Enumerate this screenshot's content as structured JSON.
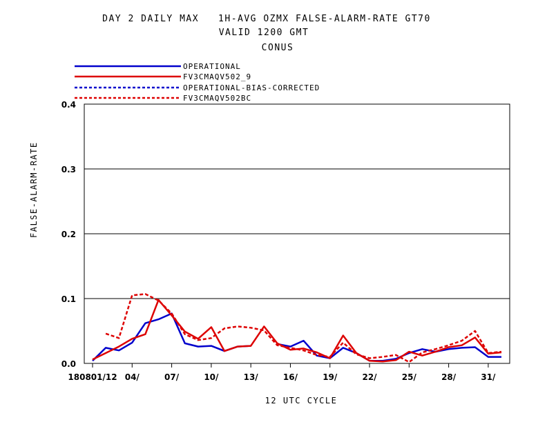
{
  "header": {
    "title_line1": "DAY 2 DAILY MAX   1H-AVG OZMX FALSE-ALARM-RATE GT70",
    "title_line2": "VALID 1200 GMT",
    "title_line3": "CONUS"
  },
  "legend": [
    {
      "label": "OPERATIONAL",
      "color": "#0000cc",
      "style": "solid"
    },
    {
      "label": "FV3CMAQV502_9",
      "color": "#dd0000",
      "style": "solid"
    },
    {
      "label": "OPERATIONAL-BIAS-CORRECTED",
      "color": "#0000cc",
      "style": "dashed"
    },
    {
      "label": "FV3CMAQV502BC",
      "color": "#dd0000",
      "style": "dashed"
    }
  ],
  "chart_data": {
    "type": "line",
    "ylabel": "FALSE-ALARM-RATE",
    "xlabel": "12 UTC CYCLE",
    "ylim": [
      0,
      0.4
    ],
    "yticks": [
      "0.0",
      "0.1",
      "0.2",
      "0.3",
      "0.4"
    ],
    "xlim": [
      0,
      31
    ],
    "xticks": [
      {
        "x": 0,
        "label": "180801/12"
      },
      {
        "x": 3,
        "label": "04/"
      },
      {
        "x": 6,
        "label": "07/"
      },
      {
        "x": 9,
        "label": "10/"
      },
      {
        "x": 12,
        "label": "13/"
      },
      {
        "x": 15,
        "label": "16/"
      },
      {
        "x": 18,
        "label": "19/"
      },
      {
        "x": 21,
        "label": "22/"
      },
      {
        "x": 24,
        "label": "25/"
      },
      {
        "x": 27,
        "label": "28/"
      },
      {
        "x": 30,
        "label": "31/"
      }
    ],
    "grid": "horizontal",
    "series": [
      {
        "name": "OPERATIONAL",
        "color": "#0000cc",
        "dash": false,
        "values": [
          0.004,
          0.024,
          0.02,
          0.032,
          0.062,
          0.068,
          0.077,
          0.031,
          0.026,
          0.027,
          0.019,
          0.026,
          0.027,
          null,
          0.03,
          0.026,
          0.035,
          0.012,
          0.008,
          0.024,
          0.016,
          0.004,
          0.004,
          0.007,
          0.016,
          0.022,
          0.018,
          0.022,
          0.024,
          0.025,
          0.01,
          0.01
        ]
      },
      {
        "name": "FV3CMAQV502_9",
        "color": "#dd0000",
        "dash": false,
        "values": [
          0.006,
          0.016,
          0.026,
          0.038,
          0.045,
          0.098,
          0.074,
          0.049,
          0.038,
          0.056,
          0.019,
          0.026,
          0.027,
          0.057,
          0.031,
          0.021,
          0.023,
          0.017,
          0.008,
          0.043,
          0.016,
          0.004,
          0.003,
          0.005,
          0.018,
          0.012,
          0.018,
          0.025,
          0.028,
          0.04,
          0.015,
          0.017
        ]
      },
      {
        "name": "OPERATIONAL-BIAS-CORRECTED",
        "color": "#0000cc",
        "dash": true,
        "values": [
          null,
          null,
          null,
          null,
          null,
          null,
          null,
          null,
          null,
          null,
          null,
          null,
          null,
          null,
          null,
          null,
          null,
          null,
          null,
          null,
          null,
          null,
          null,
          null,
          null,
          null,
          null,
          null,
          null,
          null,
          null,
          null
        ]
      },
      {
        "name": "FV3CMAQV502BC",
        "color": "#dd0000",
        "dash": true,
        "values": [
          null,
          0.046,
          0.039,
          0.105,
          0.107,
          0.097,
          0.077,
          0.045,
          0.036,
          0.039,
          0.054,
          0.057,
          0.055,
          0.051,
          0.028,
          0.024,
          0.02,
          0.013,
          0.01,
          0.032,
          0.014,
          0.008,
          0.01,
          0.013,
          0.002,
          0.017,
          0.022,
          0.028,
          0.035,
          0.05,
          0.016,
          0.018
        ]
      }
    ]
  }
}
